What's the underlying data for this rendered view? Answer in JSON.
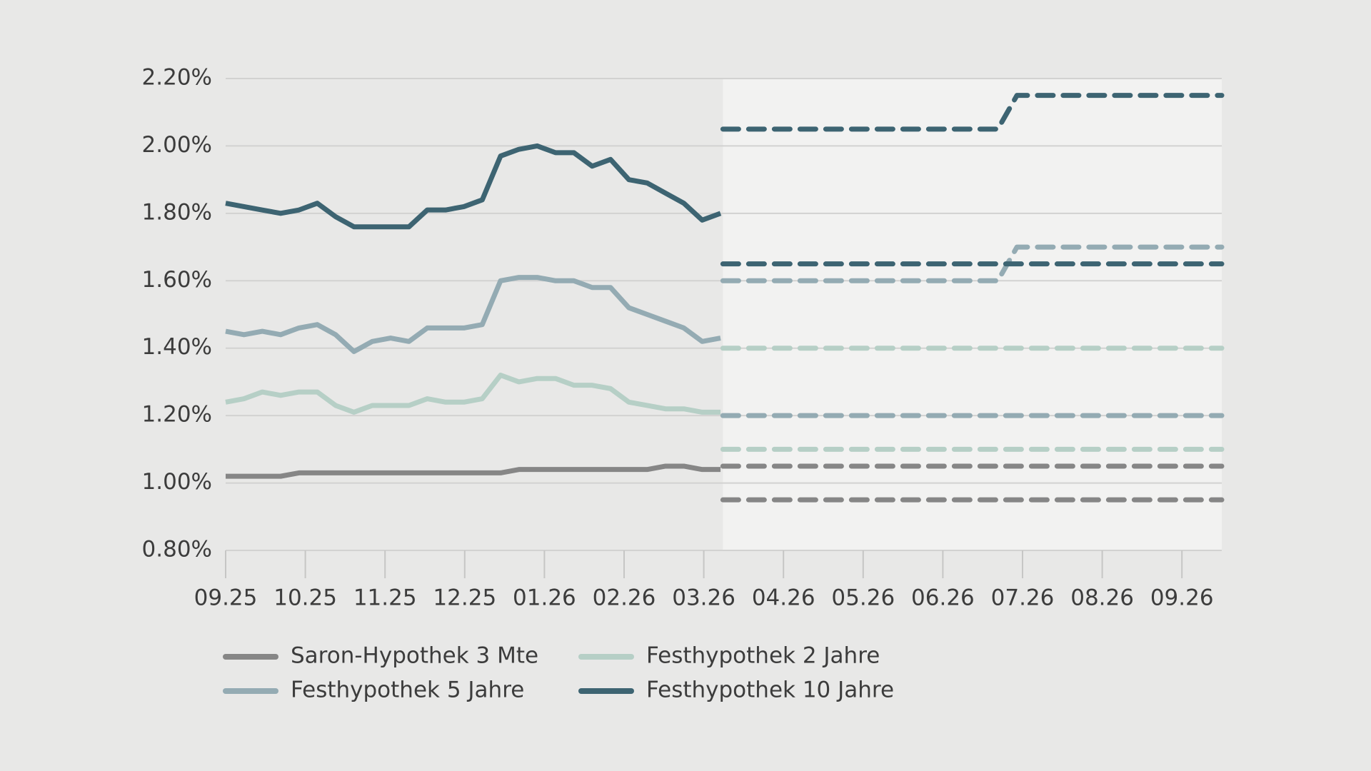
{
  "chart_data": {
    "type": "line",
    "xlim": [
      0,
      12.5
    ],
    "xticks": [
      {
        "value": 0,
        "label": "09.25"
      },
      {
        "value": 1,
        "label": "10.25"
      },
      {
        "value": 2,
        "label": "11.25"
      },
      {
        "value": 3,
        "label": "12.25"
      },
      {
        "value": 4,
        "label": "01.26"
      },
      {
        "value": 5,
        "label": "02.26"
      },
      {
        "value": 6,
        "label": "03.26"
      },
      {
        "value": 7,
        "label": "04.26"
      },
      {
        "value": 8,
        "label": "05.26"
      },
      {
        "value": 9,
        "label": "06.26"
      },
      {
        "value": 10,
        "label": "07.26"
      },
      {
        "value": 11,
        "label": "08.26"
      },
      {
        "value": 12,
        "label": "09.26"
      }
    ],
    "ylim": [
      0.8,
      2.2
    ],
    "yticks": [
      {
        "value": 0.8,
        "label": "0.80%"
      },
      {
        "value": 1.0,
        "label": "1.00%"
      },
      {
        "value": 1.2,
        "label": "1.20%"
      },
      {
        "value": 1.4,
        "label": "1.40%"
      },
      {
        "value": 1.6,
        "label": "1.60%"
      },
      {
        "value": 1.8,
        "label": "1.80%"
      },
      {
        "value": 2.0,
        "label": "2.00%"
      },
      {
        "value": 2.2,
        "label": "2.20%"
      }
    ],
    "grid": true,
    "series": [
      {
        "name": "Saron-Hypothek 3 Mte",
        "color": "#868686",
        "x": [
          0,
          0.23,
          0.46,
          0.69,
          0.92,
          1.15,
          1.38,
          1.61,
          1.84,
          2.07,
          2.3,
          2.53,
          2.76,
          2.99,
          3.22,
          3.45,
          3.68,
          3.91,
          4.14,
          4.37,
          4.6,
          4.83,
          5.06,
          5.29,
          5.52,
          5.75,
          5.98,
          6.21
        ],
        "values": [
          1.02,
          1.02,
          1.02,
          1.02,
          1.03,
          1.03,
          1.03,
          1.03,
          1.03,
          1.03,
          1.03,
          1.03,
          1.03,
          1.03,
          1.03,
          1.03,
          1.04,
          1.04,
          1.04,
          1.04,
          1.04,
          1.04,
          1.04,
          1.04,
          1.05,
          1.05,
          1.04,
          1.04
        ]
      },
      {
        "name": "Festhypothek 2 Jahre",
        "color": "#b6cfc6",
        "x": [
          0,
          0.23,
          0.46,
          0.69,
          0.92,
          1.15,
          1.38,
          1.61,
          1.84,
          2.07,
          2.3,
          2.53,
          2.76,
          2.99,
          3.22,
          3.45,
          3.68,
          3.91,
          4.14,
          4.37,
          4.6,
          4.83,
          5.06,
          5.29,
          5.52,
          5.75,
          5.98,
          6.21
        ],
        "values": [
          1.24,
          1.25,
          1.27,
          1.26,
          1.27,
          1.27,
          1.23,
          1.21,
          1.23,
          1.23,
          1.23,
          1.25,
          1.24,
          1.24,
          1.25,
          1.32,
          1.3,
          1.31,
          1.31,
          1.29,
          1.29,
          1.28,
          1.24,
          1.23,
          1.22,
          1.22,
          1.21,
          1.21
        ]
      },
      {
        "name": "Festhypothek 5 Jahre",
        "color": "#94abb3",
        "x": [
          0,
          0.23,
          0.46,
          0.69,
          0.92,
          1.15,
          1.38,
          1.61,
          1.84,
          2.07,
          2.3,
          2.53,
          2.76,
          2.99,
          3.22,
          3.45,
          3.68,
          3.91,
          4.14,
          4.37,
          4.6,
          4.83,
          5.06,
          5.29,
          5.52,
          5.75,
          5.98,
          6.21
        ],
        "values": [
          1.45,
          1.44,
          1.45,
          1.44,
          1.46,
          1.47,
          1.44,
          1.39,
          1.42,
          1.43,
          1.42,
          1.46,
          1.46,
          1.46,
          1.47,
          1.6,
          1.61,
          1.61,
          1.6,
          1.6,
          1.58,
          1.58,
          1.52,
          1.5,
          1.48,
          1.46,
          1.42,
          1.43
        ]
      },
      {
        "name": "Festhypothek 10 Jahre",
        "color": "#3d6472",
        "x": [
          0,
          0.23,
          0.46,
          0.69,
          0.92,
          1.15,
          1.38,
          1.61,
          1.84,
          2.07,
          2.3,
          2.53,
          2.76,
          2.99,
          3.22,
          3.45,
          3.68,
          3.91,
          4.14,
          4.37,
          4.6,
          4.83,
          5.06,
          5.29,
          5.52,
          5.75,
          5.98,
          6.21
        ],
        "values": [
          1.83,
          1.82,
          1.81,
          1.8,
          1.81,
          1.83,
          1.79,
          1.76,
          1.76,
          1.76,
          1.76,
          1.81,
          1.81,
          1.82,
          1.84,
          1.97,
          1.99,
          2.0,
          1.98,
          1.98,
          1.94,
          1.96,
          1.9,
          1.89,
          1.86,
          1.83,
          1.78,
          1.8
        ]
      },
      {
        "color": "#868686",
        "dashed": true,
        "x": [
          6.24,
          12.5
        ],
        "values": [
          1.05,
          1.05
        ]
      },
      {
        "color": "#868686",
        "dashed": true,
        "x": [
          6.24,
          12.5
        ],
        "values": [
          0.95,
          0.95
        ]
      },
      {
        "color": "#b6cfc6",
        "dashed": true,
        "x": [
          6.24,
          12.5
        ],
        "values": [
          1.4,
          1.4
        ]
      },
      {
        "color": "#b6cfc6",
        "dashed": true,
        "x": [
          6.24,
          12.5
        ],
        "values": [
          1.1,
          1.1
        ]
      },
      {
        "color": "#94abb3",
        "dashed": true,
        "x": [
          6.24,
          9.69,
          9.93,
          12.5
        ],
        "values": [
          1.6,
          1.6,
          1.7,
          1.7
        ]
      },
      {
        "color": "#94abb3",
        "dashed": true,
        "x": [
          6.24,
          12.5
        ],
        "values": [
          1.2,
          1.2
        ]
      },
      {
        "color": "#3d6472",
        "dashed": true,
        "x": [
          6.24,
          9.69,
          9.93,
          12.5
        ],
        "values": [
          2.05,
          2.05,
          2.15,
          2.15
        ]
      },
      {
        "color": "#3d6472",
        "dashed": true,
        "x": [
          6.24,
          12.5
        ],
        "values": [
          1.65,
          1.65
        ]
      }
    ]
  }
}
